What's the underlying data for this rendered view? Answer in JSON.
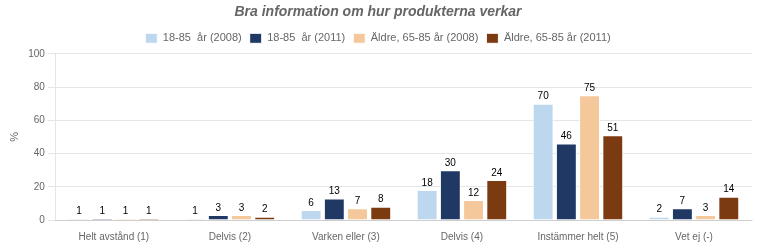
{
  "chart_data": {
    "type": "bar",
    "title": "Bra information om hur produkterna verkar",
    "ylabel": "%",
    "categories": [
      "Helt avstånd (1)",
      "Delvis (2)",
      "Varken eller (3)",
      "Delvis (4)",
      "Instämmer helt (5)",
      "Vet ej (-)"
    ],
    "series": [
      {
        "name": "18-85  år (2008)",
        "color": "#BDD7EE",
        "values": [
          1,
          1,
          6,
          18,
          70,
          2
        ]
      },
      {
        "name": "18-85  år (2011)",
        "color": "#1F3864",
        "values": [
          1,
          3,
          13,
          30,
          46,
          7
        ]
      },
      {
        "name": "Äldre, 65-85 år (2008)",
        "color": "#F4C89A",
        "values": [
          1,
          3,
          7,
          12,
          75,
          3
        ]
      },
      {
        "name": "Äldre, 65-85 år (2011)",
        "color": "#7B3A10",
        "values": [
          1,
          2,
          8,
          24,
          51,
          14
        ]
      }
    ],
    "ylim": [
      0,
      100
    ],
    "yticks": [
      0,
      20,
      40,
      60,
      80,
      100
    ],
    "grid": true,
    "legend": "top",
    "data_labels": true
  }
}
